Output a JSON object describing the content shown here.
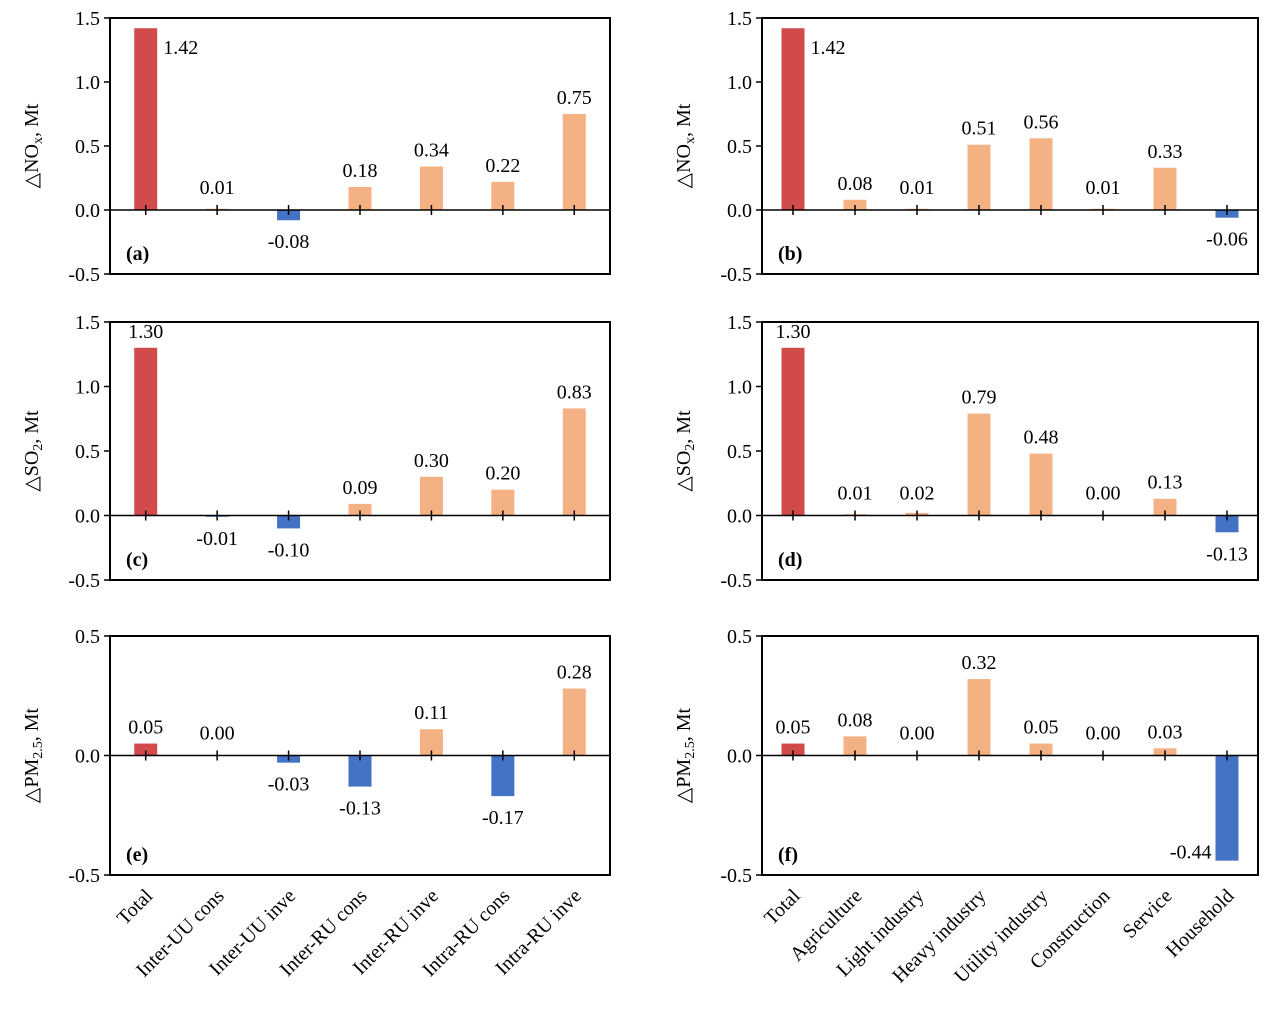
{
  "colors": {
    "total": "#d24b4b",
    "positive": "#f4b183",
    "negative": "#4472c4"
  },
  "chart_data": [
    {
      "id": "(a)",
      "type": "bar",
      "ylabel": "△NOx, Mt",
      "ylabel_main": "△NO",
      "ylabel_sub": "x",
      "ylabel_tail": ", Mt",
      "ylim": [
        -0.5,
        1.5
      ],
      "yticks": [
        "1.5",
        "1.0",
        "0.5",
        "0.0",
        "-0.5"
      ],
      "categories": [
        "Total",
        "Inter-UU cons",
        "Inter-UU inve",
        "Inter-RU cons",
        "Inter-RU inve",
        "Intra-RU cons",
        "Intra-RU inve"
      ],
      "values": [
        1.42,
        0.01,
        -0.08,
        0.18,
        0.34,
        0.22,
        0.75
      ],
      "labels": [
        "1.42",
        "0.01",
        "-0.08",
        "0.18",
        "0.34",
        "0.22",
        "0.75"
      ],
      "show_categories": false
    },
    {
      "id": "(b)",
      "type": "bar",
      "ylabel": "△NOx, Mt",
      "ylabel_main": "△NO",
      "ylabel_sub": "x",
      "ylabel_tail": ", Mt",
      "ylim": [
        -0.5,
        1.5
      ],
      "yticks": [
        "1.5",
        "1.0",
        "0.5",
        "0.0",
        "-0.5"
      ],
      "categories": [
        "Total",
        "Agriculture",
        "Light industry",
        "Heavy industry",
        "Utility industry",
        "Construction",
        "Service",
        "Household"
      ],
      "values": [
        1.42,
        0.08,
        0.01,
        0.51,
        0.56,
        0.01,
        0.33,
        -0.06
      ],
      "labels": [
        "1.42",
        "0.08",
        "0.01",
        "0.51",
        "0.56",
        "0.01",
        "0.33",
        "-0.06"
      ],
      "show_categories": false
    },
    {
      "id": "(c)",
      "type": "bar",
      "ylabel": "△SO2, Mt",
      "ylabel_main": "△SO",
      "ylabel_sub": "2",
      "ylabel_tail": ", Mt",
      "ylim": [
        -0.5,
        1.5
      ],
      "yticks": [
        "1.5",
        "1.0",
        "0.5",
        "0.0",
        "-0.5"
      ],
      "categories": [
        "Total",
        "Inter-UU cons",
        "Inter-UU inve",
        "Inter-RU cons",
        "Inter-RU inve",
        "Intra-RU cons",
        "Intra-RU inve"
      ],
      "values": [
        1.3,
        -0.01,
        -0.1,
        0.09,
        0.3,
        0.2,
        0.83
      ],
      "labels": [
        "1.30",
        "-0.01",
        "-0.10",
        "0.09",
        "0.30",
        "0.20",
        "0.83"
      ],
      "show_categories": false
    },
    {
      "id": "(d)",
      "type": "bar",
      "ylabel": "△SO2, Mt",
      "ylabel_main": "△SO",
      "ylabel_sub": "2",
      "ylabel_tail": ", Mt",
      "ylim": [
        -0.5,
        1.5
      ],
      "yticks": [
        "1.5",
        "1.0",
        "0.5",
        "0.0",
        "-0.5"
      ],
      "categories": [
        "Total",
        "Agriculture",
        "Light industry",
        "Heavy industry",
        "Utility industry",
        "Construction",
        "Service",
        "Household"
      ],
      "values": [
        1.3,
        0.01,
        0.02,
        0.79,
        0.48,
        0.0,
        0.13,
        -0.13
      ],
      "labels": [
        "1.30",
        "0.01",
        "0.02",
        "0.79",
        "0.48",
        "0.00",
        "0.13",
        "-0.13"
      ],
      "show_categories": false
    },
    {
      "id": "(e)",
      "type": "bar",
      "ylabel": "△PM2.5, Mt",
      "ylabel_main": "△PM",
      "ylabel_sub": "2.5",
      "ylabel_tail": ", Mt",
      "ylim": [
        -0.5,
        0.5
      ],
      "yticks": [
        "0.5",
        "0.0",
        "-0.5"
      ],
      "categories": [
        "Total",
        "Inter-UU cons",
        "Inter-UU inve",
        "Inter-RU cons",
        "Inter-RU inve",
        "Intra-RU cons",
        "Intra-RU inve"
      ],
      "values": [
        0.05,
        0.0,
        -0.03,
        -0.13,
        0.11,
        -0.17,
        0.28
      ],
      "labels": [
        "0.05",
        "0.00",
        "-0.03",
        "-0.13",
        "0.11",
        "-0.17",
        "0.28"
      ],
      "show_categories": true
    },
    {
      "id": "(f)",
      "type": "bar",
      "ylabel": "△PM2.5, Mt",
      "ylabel_main": "△PM",
      "ylabel_sub": "2.5",
      "ylabel_tail": ", Mt",
      "ylim": [
        -0.5,
        0.5
      ],
      "yticks": [
        "0.5",
        "0.0",
        "-0.5"
      ],
      "categories": [
        "Total",
        "Agriculture",
        "Light industry",
        "Heavy industry",
        "Utility industry",
        "Construction",
        "Service",
        "Household"
      ],
      "values": [
        0.05,
        0.08,
        0.0,
        0.32,
        0.05,
        0.0,
        0.03,
        -0.44
      ],
      "labels": [
        "0.05",
        "0.08",
        "0.00",
        "0.32",
        "0.05",
        "0.00",
        "0.03",
        "-0.44"
      ],
      "show_categories": true
    }
  ]
}
